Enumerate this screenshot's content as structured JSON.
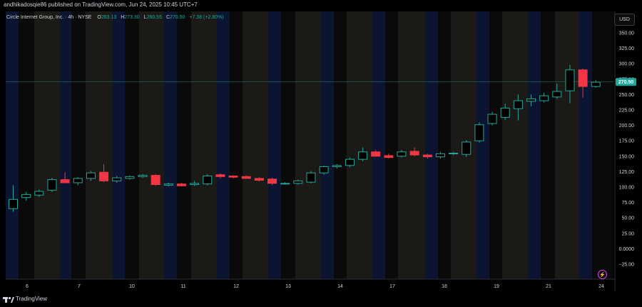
{
  "publisher_line": "andhikadosqie86 published on TradingView.com, Jun 24, 2025 10:45 UTC+7",
  "legend": {
    "symbol": "Circle Internet Group, Inc. · 4h · NYSE",
    "open_label": "O",
    "open": "263.13",
    "high_label": "H",
    "high": "273.30",
    "low_label": "L",
    "low": "260.55",
    "close_label": "C",
    "close": "270.50",
    "change": "+7.38 (+2.80%)"
  },
  "currency_button": "USD",
  "last_price_tag": "270.50",
  "footer": {
    "brand": "TradingView"
  },
  "icons": {
    "alert": "lightning-icon",
    "logo": "tradingview-logo-icon"
  },
  "colors": {
    "up": "#26a69a",
    "down": "#f23645",
    "background": "#000000",
    "axis_text": "#d1d4dc"
  },
  "chart_data": {
    "type": "candlestick",
    "y_ticks": [
      "350.00",
      "325.00",
      "300.00",
      "275.00",
      "250.00",
      "225.00",
      "200.00",
      "175.00",
      "150.00",
      "125.00",
      "100.00",
      "75.00",
      "50.00",
      "25.00",
      "0.0000",
      "−25.00"
    ],
    "y_range": [
      -35,
      370
    ],
    "x_ticks": [
      "6",
      "7",
      "10",
      "11",
      "12",
      "13",
      "14",
      "17",
      "18",
      "19",
      "21",
      "24"
    ],
    "last_price": 270.5,
    "candles": [
      {
        "o": 65,
        "h": 103,
        "l": 60,
        "c": 80
      },
      {
        "o": 83,
        "h": 92,
        "l": 78,
        "c": 88
      },
      {
        "o": 87,
        "h": 96,
        "l": 84,
        "c": 93
      },
      {
        "o": 95,
        "h": 115,
        "l": 92,
        "c": 112
      },
      {
        "o": 112,
        "h": 124,
        "l": 106,
        "c": 107
      },
      {
        "o": 107,
        "h": 116,
        "l": 103,
        "c": 114
      },
      {
        "o": 114,
        "h": 126,
        "l": 110,
        "c": 123
      },
      {
        "o": 124,
        "h": 137,
        "l": 108,
        "c": 110
      },
      {
        "o": 110,
        "h": 118,
        "l": 107,
        "c": 115
      },
      {
        "o": 114,
        "h": 119,
        "l": 112,
        "c": 117
      },
      {
        "o": 117,
        "h": 121,
        "l": 115,
        "c": 119
      },
      {
        "o": 119,
        "h": 121,
        "l": 102,
        "c": 104
      },
      {
        "o": 103,
        "h": 107,
        "l": 101,
        "c": 105
      },
      {
        "o": 105,
        "h": 107,
        "l": 101,
        "c": 102
      },
      {
        "o": 104,
        "h": 110,
        "l": 102,
        "c": 106
      },
      {
        "o": 105,
        "h": 121,
        "l": 103,
        "c": 118
      },
      {
        "o": 120,
        "h": 122,
        "l": 114,
        "c": 117
      },
      {
        "o": 118,
        "h": 119,
        "l": 114,
        "c": 116
      },
      {
        "o": 117,
        "h": 119,
        "l": 113,
        "c": 114
      },
      {
        "o": 114,
        "h": 116,
        "l": 109,
        "c": 111
      },
      {
        "o": 113,
        "h": 115,
        "l": 103,
        "c": 106
      },
      {
        "o": 106,
        "h": 108,
        "l": 104,
        "c": 106
      },
      {
        "o": 106,
        "h": 112,
        "l": 104,
        "c": 110
      },
      {
        "o": 108,
        "h": 126,
        "l": 106,
        "c": 123
      },
      {
        "o": 123,
        "h": 135,
        "l": 120,
        "c": 133
      },
      {
        "o": 133,
        "h": 137,
        "l": 130,
        "c": 135
      },
      {
        "o": 135,
        "h": 148,
        "l": 132,
        "c": 145
      },
      {
        "o": 145,
        "h": 164,
        "l": 142,
        "c": 157
      },
      {
        "o": 157,
        "h": 160,
        "l": 149,
        "c": 150
      },
      {
        "o": 151,
        "h": 154,
        "l": 146,
        "c": 148
      },
      {
        "o": 150,
        "h": 160,
        "l": 148,
        "c": 157
      },
      {
        "o": 158,
        "h": 164,
        "l": 150,
        "c": 152
      },
      {
        "o": 152,
        "h": 154,
        "l": 146,
        "c": 149
      },
      {
        "o": 149,
        "h": 157,
        "l": 146,
        "c": 154
      },
      {
        "o": 154,
        "h": 157,
        "l": 152,
        "c": 155
      },
      {
        "o": 153,
        "h": 176,
        "l": 149,
        "c": 173
      },
      {
        "o": 175,
        "h": 205,
        "l": 172,
        "c": 201
      },
      {
        "o": 203,
        "h": 222,
        "l": 200,
        "c": 218
      },
      {
        "o": 213,
        "h": 235,
        "l": 209,
        "c": 228
      },
      {
        "o": 227,
        "h": 250,
        "l": 208,
        "c": 240
      },
      {
        "o": 239,
        "h": 250,
        "l": 231,
        "c": 243
      },
      {
        "o": 240,
        "h": 253,
        "l": 237,
        "c": 248
      },
      {
        "o": 246,
        "h": 268,
        "l": 243,
        "c": 255
      },
      {
        "o": 256,
        "h": 298,
        "l": 236,
        "c": 290
      },
      {
        "o": 290,
        "h": 292,
        "l": 245,
        "c": 263
      },
      {
        "o": 263,
        "h": 273,
        "l": 261,
        "c": 270
      }
    ]
  }
}
